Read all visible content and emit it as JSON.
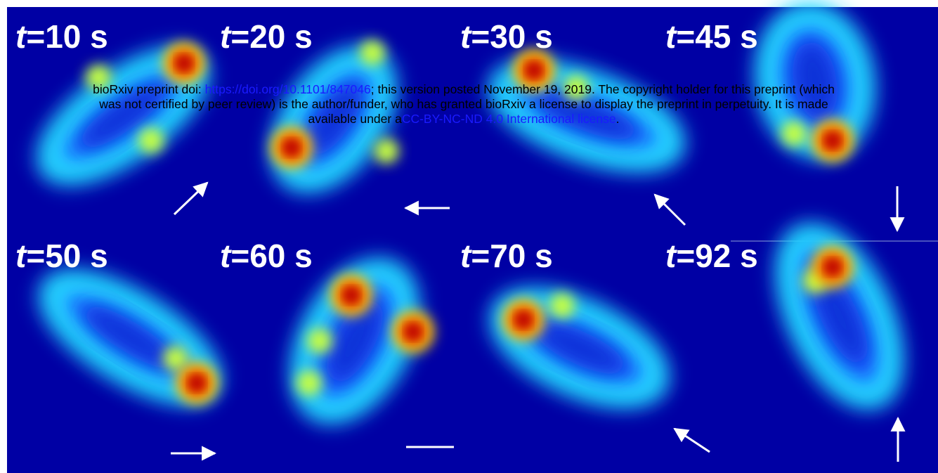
{
  "panels": [
    {
      "variable": "t",
      "value": "=10 s"
    },
    {
      "variable": "t",
      "value": "=20 s"
    },
    {
      "variable": "t",
      "value": "=30 s"
    },
    {
      "variable": "t",
      "value": "=45 s"
    },
    {
      "variable": "t",
      "value": "=50 s"
    },
    {
      "variable": "t",
      "value": "=60 s"
    },
    {
      "variable": "t",
      "value": "=70 s"
    },
    {
      "variable": "t",
      "value": "=92 s"
    }
  ],
  "watermark": {
    "line1_prefix": "bioRxiv preprint doi: ",
    "doi_link": "https://doi.org/10.1101/847046",
    "line1_suffix": "; this version posted November 19, 2019. The copyright holder for this preprint (which",
    "line2": "was not certified by peer review) is the author/funder, who has granted bioRxiv a license to display the preprint in perpetuity. It is made",
    "line3_prefix": "available under a",
    "license_link": "CC-BY-NC-ND 4.0 International license",
    "line3_suffix": "."
  }
}
